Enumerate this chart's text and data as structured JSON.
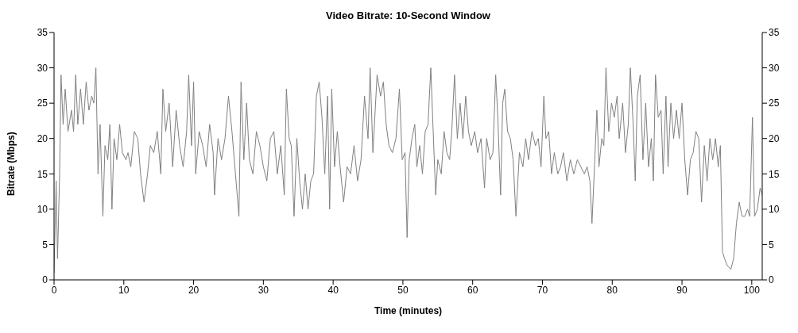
{
  "chart_data": {
    "type": "line",
    "title": "Video Bitrate: 10-Second Window",
    "xlabel": "Time (minutes)",
    "ylabel": "Bitrate (Mbps)",
    "x": [
      0,
      0.3,
      0.5,
      0.8,
      1.0,
      1.3,
      1.6,
      2,
      2.5,
      2.8,
      3.1,
      3.4,
      3.8,
      4.2,
      4.6,
      5,
      5.4,
      5.7,
      6,
      6.3,
      6.6,
      7,
      7.3,
      7.7,
      8.0,
      8.3,
      8.6,
      9,
      9.4,
      9.8,
      10.3,
      10.6,
      11,
      11.5,
      12,
      12.4,
      12.9,
      13.4,
      13.8,
      14.3,
      14.8,
      15.3,
      15.6,
      16,
      16.5,
      17,
      17.5,
      18,
      18.5,
      19,
      19.3,
      19.7,
      20,
      20.3,
      20.8,
      21.3,
      21.8,
      22.3,
      22.8,
      23,
      23.5,
      24,
      24.5,
      25,
      25.5,
      26,
      26.5,
      26.8,
      27.2,
      27.6,
      28,
      28.5,
      29,
      29.5,
      30,
      30.5,
      31,
      31.5,
      32,
      32.5,
      33,
      33.3,
      33.7,
      34,
      34.4,
      34.8,
      35.2,
      35.6,
      36,
      36.4,
      36.8,
      37.2,
      37.6,
      38,
      38.4,
      38.8,
      39.2,
      39.5,
      39.8,
      40.2,
      40.6,
      41,
      41.5,
      42,
      42.5,
      43,
      43.5,
      44,
      44.5,
      45,
      45.3,
      45.7,
      46.3,
      46.8,
      47.2,
      47.6,
      48,
      48.5,
      49,
      49.5,
      49.9,
      50.3,
      50.6,
      50.9,
      51.3,
      51.7,
      52,
      52.4,
      52.8,
      53.2,
      53.6,
      54,
      54.3,
      54.7,
      55,
      55.5,
      55.9,
      56.3,
      56.7,
      57,
      57.4,
      57.8,
      58.2,
      58.6,
      59,
      59.4,
      59.8,
      60.3,
      60.7,
      61.2,
      61.7,
      62,
      62.5,
      62.9,
      63.3,
      63.6,
      64,
      64.3,
      64.6,
      65,
      65.4,
      65.8,
      66.2,
      66.7,
      67.2,
      67.6,
      68,
      68.5,
      69,
      69.4,
      69.8,
      70.2,
      70.5,
      70.9,
      71.3,
      71.7,
      72.2,
      72.6,
      73,
      73.5,
      74,
      74.5,
      75,
      75.5,
      76,
      76.4,
      76.8,
      77.1,
      77.5,
      77.8,
      78.1,
      78.5,
      78.8,
      79.1,
      79.5,
      79.9,
      80.3,
      80.7,
      81,
      81.5,
      81.9,
      82.3,
      82.6,
      83,
      83.3,
      83.6,
      84,
      84.4,
      84.8,
      85.2,
      85.6,
      85.9,
      86.2,
      86.6,
      87,
      87.3,
      87.7,
      88,
      88.4,
      88.8,
      89.2,
      89.6,
      90,
      90.4,
      90.8,
      91.2,
      91.6,
      92,
      92.4,
      92.8,
      93.2,
      93.6,
      94,
      94.4,
      94.8,
      95.2,
      95.5,
      95.8,
      96.1,
      96.5,
      97,
      97.4,
      97.8,
      98.2,
      98.6,
      99,
      99.4,
      99.7,
      100.1,
      100.4,
      100.8,
      101.2,
      101.5
    ],
    "series": [
      {
        "color": "#808080",
        "values": [
          1,
          14,
          3,
          15,
          29,
          22,
          27,
          21,
          24,
          21,
          29,
          22,
          27,
          22,
          28,
          24,
          26,
          25,
          30,
          15,
          22,
          9,
          19,
          17,
          22,
          10,
          20,
          17,
          22,
          18,
          17,
          18,
          16,
          21,
          20,
          15,
          11,
          15,
          19,
          18,
          21,
          15,
          27,
          21,
          25,
          16,
          24,
          19,
          16,
          21,
          29,
          19,
          28,
          15,
          21,
          19,
          16,
          22,
          18,
          12,
          20,
          17,
          20,
          26,
          21,
          15,
          9,
          28,
          17,
          25,
          17,
          15,
          21,
          19,
          16,
          14,
          20,
          21,
          15,
          19,
          12,
          27,
          20,
          19,
          9,
          20,
          14,
          10,
          15,
          10,
          14,
          15,
          26,
          28,
          23,
          15,
          26,
          10,
          27,
          16,
          21,
          16,
          11,
          16,
          15,
          19,
          14,
          17,
          26,
          20,
          30,
          18,
          29,
          26,
          28,
          22,
          19,
          18,
          20,
          27,
          17,
          18,
          6,
          17,
          20,
          22,
          16,
          19,
          15,
          21,
          22,
          30,
          22,
          12,
          17,
          15,
          21,
          18,
          17,
          21,
          29,
          20,
          25,
          20,
          26,
          21,
          19,
          21,
          18,
          20,
          13,
          20,
          17,
          18,
          29,
          23,
          12,
          25,
          27,
          21,
          20,
          17,
          9,
          18,
          16,
          20,
          17,
          21,
          19,
          20,
          16,
          26,
          20,
          21,
          15,
          18,
          15,
          16,
          18,
          14,
          17,
          15,
          17,
          16,
          15,
          16,
          14,
          8,
          17,
          24,
          16,
          20,
          19,
          30,
          21,
          25,
          23,
          26,
          20,
          25,
          18,
          22,
          30,
          22,
          14,
          26,
          29,
          17,
          25,
          16,
          20,
          14,
          29,
          23,
          24,
          15,
          26,
          16,
          25,
          20,
          24,
          20,
          25,
          17,
          12,
          17,
          18,
          21,
          20,
          11,
          19,
          14,
          20,
          17,
          20,
          16,
          19,
          4,
          3,
          2,
          1.5,
          3,
          8,
          11,
          9,
          9,
          10,
          9,
          23,
          9,
          10,
          13,
          12
        ]
      }
    ],
    "xlim": [
      0,
      101.5
    ],
    "xticks": [
      0,
      10,
      20,
      30,
      40,
      50,
      60,
      70,
      80,
      90,
      100
    ],
    "ylim": [
      0,
      35
    ],
    "yticks": [
      0,
      5,
      10,
      15,
      20,
      25,
      30,
      35
    ],
    "y2lim": [
      0,
      35
    ],
    "y2ticks": [
      0,
      5,
      10,
      15,
      20,
      25,
      30,
      35
    ],
    "marker": "none",
    "line_style": "solid",
    "grid": false
  }
}
